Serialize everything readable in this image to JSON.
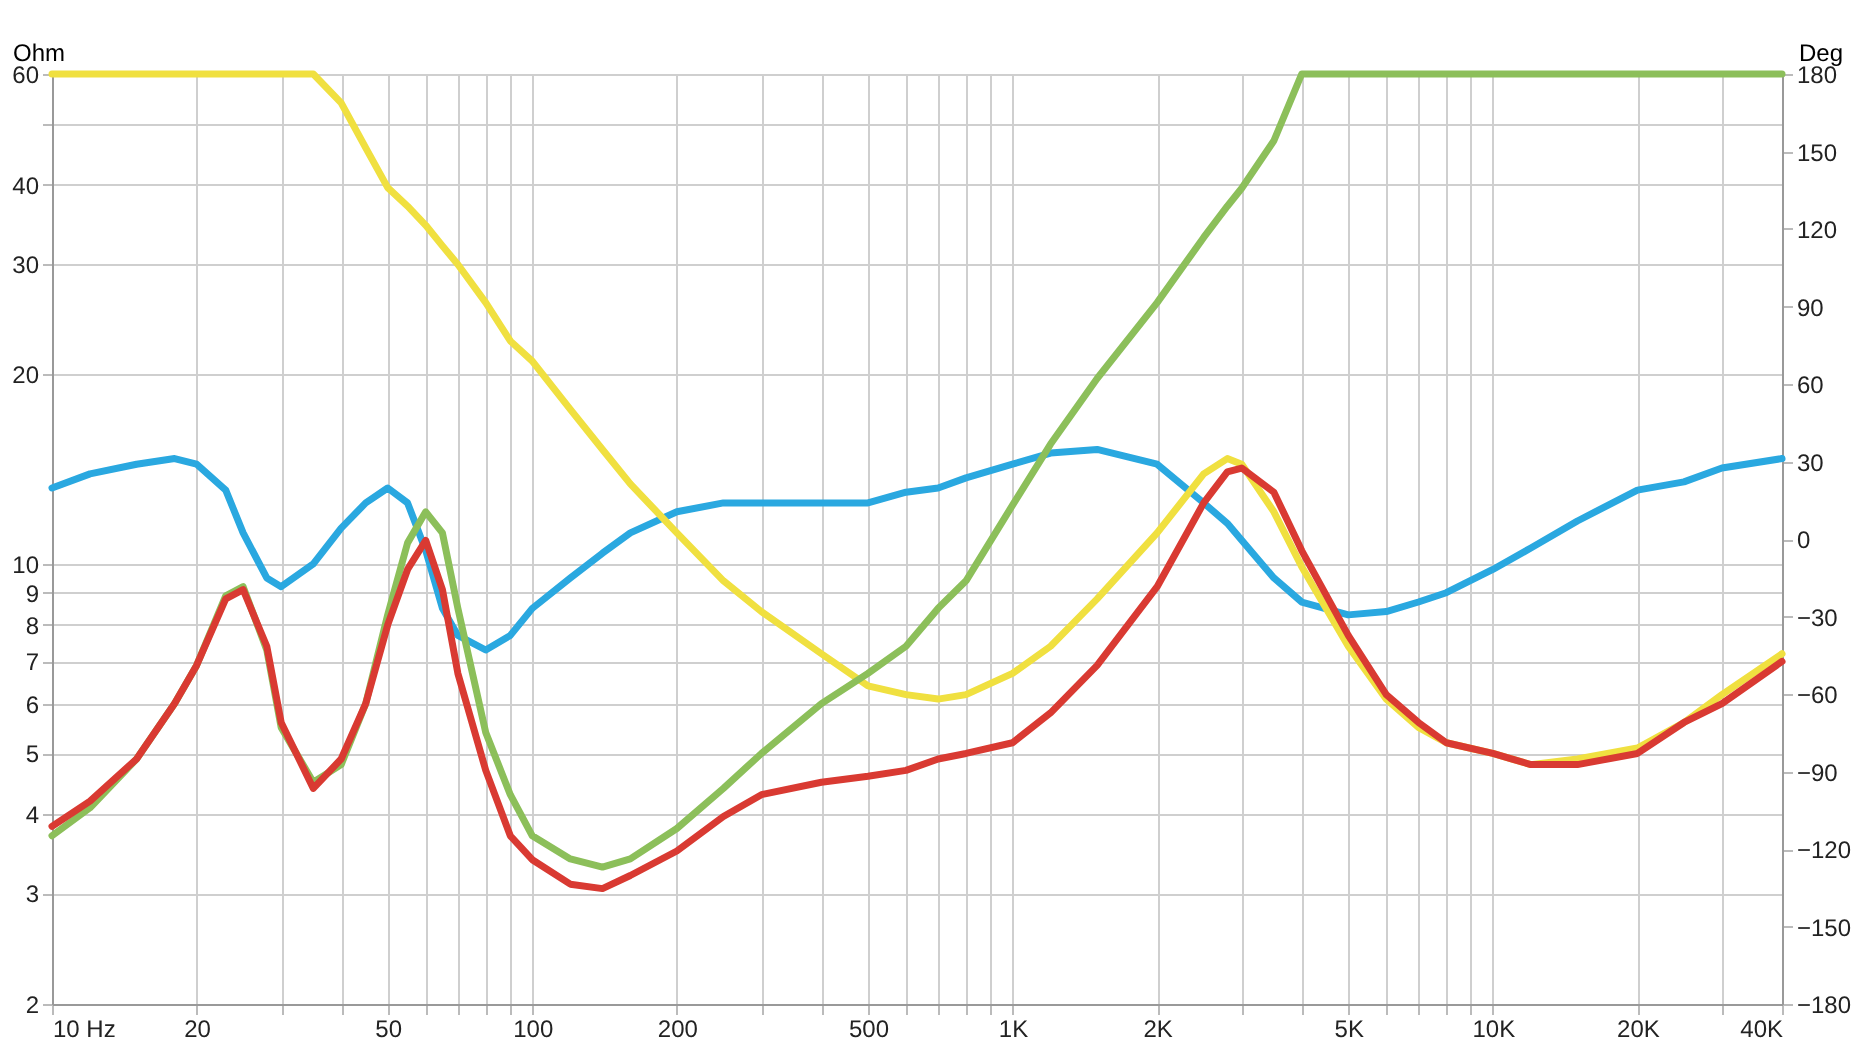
{
  "chart_data": {
    "type": "line",
    "xlabel": null,
    "ylabel": "Ohm",
    "y2label": "Deg",
    "x": [
      10,
      12,
      15,
      18,
      20,
      23,
      25,
      28,
      30,
      35,
      40,
      45,
      50,
      55,
      60,
      65,
      70,
      80,
      90,
      100,
      120,
      140,
      160,
      200,
      250,
      300,
      400,
      500,
      600,
      700,
      800,
      1000,
      1200,
      1500,
      2000,
      2500,
      2800,
      3000,
      3500,
      4000,
      5000,
      6000,
      7000,
      8000,
      10000,
      12000,
      15000,
      20000,
      25000,
      30000,
      40000
    ],
    "series": [
      {
        "color": "#2aa8e0",
        "values": [
          13.2,
          13.9,
          14.4,
          14.7,
          14.4,
          13.1,
          11.2,
          9.5,
          9.2,
          10,
          11.4,
          12.5,
          13.2,
          12.5,
          10.5,
          8.5,
          7.7,
          7.3,
          7.7,
          8.5,
          9.5,
          10.4,
          11.2,
          12.1,
          12.5,
          12.5,
          12.5,
          12.5,
          13.0,
          13.2,
          13.7,
          14.4,
          15,
          15.2,
          14.4,
          12.5,
          11.6,
          10.9,
          9.5,
          8.7,
          8.3,
          8.4,
          8.7,
          9.0,
          9.8,
          10.6,
          11.7,
          13.1,
          13.5,
          14.2,
          14.7
        ]
      },
      {
        "color": "#f0e040",
        "values": [
          60,
          60,
          60,
          60,
          60,
          60,
          60,
          60,
          60,
          60,
          54,
          45.8,
          39.6,
          37,
          34.5,
          32,
          29.9,
          26,
          22.6,
          21,
          17.6,
          15.2,
          13.4,
          11.2,
          9.4,
          8.4,
          7.2,
          6.4,
          6.2,
          6.1,
          6.2,
          6.7,
          7.4,
          8.8,
          11.2,
          13.9,
          14.7,
          14.4,
          12.1,
          9.9,
          7.4,
          6.1,
          5.5,
          5.2,
          5.0,
          4.8,
          4.9,
          5.1,
          5.6,
          6.2,
          7.2
        ]
      },
      {
        "color": "#8cbf5a",
        "values": [
          3.7,
          4.1,
          4.9,
          6.0,
          6.9,
          8.9,
          9.2,
          7.3,
          5.5,
          4.5,
          4.8,
          6.0,
          8.3,
          10.8,
          12.1,
          11.2,
          8.5,
          5.4,
          4.3,
          3.7,
          3.4,
          3.3,
          3.4,
          3.8,
          4.4,
          5.0,
          6.0,
          6.7,
          7.4,
          8.5,
          9.4,
          12.4,
          15.5,
          19.7,
          26,
          33,
          37,
          39.5,
          47,
          60,
          60,
          60,
          60,
          60,
          60,
          60,
          60,
          60,
          60,
          60,
          60
        ]
      },
      {
        "color": "#d93a32",
        "values": [
          3.83,
          4.2,
          4.9,
          6.0,
          6.9,
          8.8,
          9.1,
          7.4,
          5.6,
          4.4,
          4.9,
          6.0,
          8.0,
          9.8,
          10.9,
          9.1,
          6.7,
          4.7,
          3.7,
          3.39,
          3.1,
          3.05,
          3.2,
          3.5,
          3.97,
          4.3,
          4.5,
          4.6,
          4.7,
          4.9,
          5.0,
          5.2,
          5.8,
          6.9,
          9.2,
          12.5,
          14,
          14.2,
          13,
          10.5,
          7.7,
          6.2,
          5.6,
          5.2,
          5.0,
          4.8,
          4.8,
          5.0,
          5.6,
          6.0,
          7.0
        ]
      }
    ],
    "log": "xy",
    "xlim": [
      10,
      40000
    ],
    "xticks": [
      {
        "value": 10,
        "label": "10 Hz"
      },
      20,
      {
        "value": 30,
        "label": null
      },
      {
        "value": 40,
        "label": null
      },
      50,
      {
        "value": 60,
        "label": null
      },
      {
        "value": 70,
        "label": null
      },
      {
        "value": 80,
        "label": null
      },
      {
        "value": 90,
        "label": null
      },
      100,
      200,
      {
        "value": 300,
        "label": null
      },
      {
        "value": 400,
        "label": null
      },
      500,
      {
        "value": 600,
        "label": null
      },
      {
        "value": 700,
        "label": null
      },
      {
        "value": 800,
        "label": null
      },
      {
        "value": 900,
        "label": null
      },
      {
        "value": 1000,
        "label": "1K"
      },
      {
        "value": 2000,
        "label": "2K"
      },
      {
        "value": 3000,
        "label": null
      },
      {
        "value": 4000,
        "label": null
      },
      {
        "value": 5000,
        "label": "5K"
      },
      {
        "value": 6000,
        "label": null
      },
      {
        "value": 7000,
        "label": null
      },
      {
        "value": 8000,
        "label": null
      },
      {
        "value": 9000,
        "label": null
      },
      {
        "value": 10000,
        "label": "10K"
      },
      {
        "value": 20000,
        "label": "20K"
      },
      {
        "value": 30000,
        "label": null
      },
      {
        "value": 40000,
        "label": "40K"
      }
    ],
    "ylim": [
      2,
      60
    ],
    "yticks": [
      2,
      3,
      4,
      5,
      6,
      7,
      8,
      9,
      10,
      20,
      30,
      40,
      {
        "value": 50,
        "label": null
      },
      60
    ],
    "y2lim": [
      -180,
      180
    ],
    "y2ticks": [
      -180,
      -150,
      -120,
      -90,
      -60,
      -30,
      0,
      30,
      60,
      90,
      120,
      150,
      180
    ],
    "grid": true,
    "marker": "none",
    "line_style": "solid"
  }
}
